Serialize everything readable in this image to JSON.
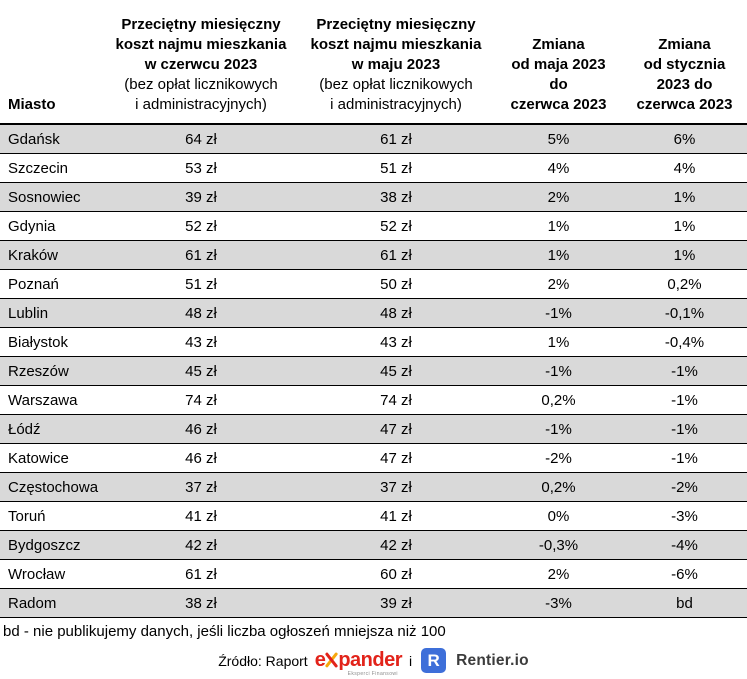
{
  "chart_data": {
    "type": "table",
    "columns": [
      {
        "id": "city",
        "header_bold": "Miasto",
        "header_normal": ""
      },
      {
        "id": "june",
        "header_bold": "Przeciętny miesięczny\nkoszt najmu mieszkania\nw czerwcu 2023",
        "header_normal": "(bez opłat licznikowych\ni administracyjnych)"
      },
      {
        "id": "may",
        "header_bold": "Przeciętny miesięczny\nkoszt najmu mieszkania\nw maju 2023",
        "header_normal": "(bez opłat licznikowych\ni administracyjnych)"
      },
      {
        "id": "change_may_june",
        "header_bold": "Zmiana\nod maja 2023\ndo\nczerwca 2023",
        "header_normal": ""
      },
      {
        "id": "change_jan_june",
        "header_bold": "Zmiana\nod stycznia\n2023 do\nczerwca 2023",
        "header_normal": ""
      }
    ],
    "rows": [
      {
        "city": "Gdańsk",
        "june": "64 zł",
        "may": "61 zł",
        "change_may_june": "5%",
        "change_jan_june": "6%"
      },
      {
        "city": "Szczecin",
        "june": "53 zł",
        "may": "51 zł",
        "change_may_june": "4%",
        "change_jan_june": "4%"
      },
      {
        "city": "Sosnowiec",
        "june": "39 zł",
        "may": "38 zł",
        "change_may_june": "2%",
        "change_jan_june": "1%"
      },
      {
        "city": "Gdynia",
        "june": "52 zł",
        "may": "52 zł",
        "change_may_june": "1%",
        "change_jan_june": "1%"
      },
      {
        "city": "Kraków",
        "june": "61 zł",
        "may": "61 zł",
        "change_may_june": "1%",
        "change_jan_june": "1%"
      },
      {
        "city": "Poznań",
        "june": "51 zł",
        "may": "50 zł",
        "change_may_june": "2%",
        "change_jan_june": "0,2%"
      },
      {
        "city": "Lublin",
        "june": "48 zł",
        "may": "48 zł",
        "change_may_june": "-1%",
        "change_jan_june": "-0,1%"
      },
      {
        "city": "Białystok",
        "june": "43 zł",
        "may": "43 zł",
        "change_may_june": "1%",
        "change_jan_june": "-0,4%"
      },
      {
        "city": "Rzeszów",
        "june": "45 zł",
        "may": "45 zł",
        "change_may_june": "-1%",
        "change_jan_june": "-1%"
      },
      {
        "city": "Warszawa",
        "june": "74 zł",
        "may": "74 zł",
        "change_may_june": "0,2%",
        "change_jan_june": "-1%"
      },
      {
        "city": "Łódź",
        "june": "46 zł",
        "may": "47 zł",
        "change_may_june": "-1%",
        "change_jan_june": "-1%"
      },
      {
        "city": "Katowice",
        "june": "46 zł",
        "may": "47 zł",
        "change_may_june": "-2%",
        "change_jan_june": "-1%"
      },
      {
        "city": "Częstochowa",
        "june": "37 zł",
        "may": "37 zł",
        "change_may_june": "0,2%",
        "change_jan_june": "-2%"
      },
      {
        "city": "Toruń",
        "june": "41 zł",
        "may": "41 zł",
        "change_may_june": "0%",
        "change_jan_june": "-3%"
      },
      {
        "city": "Bydgoszcz",
        "june": "42 zł",
        "may": "42 zł",
        "change_may_june": "-0,3%",
        "change_jan_june": "-4%"
      },
      {
        "city": "Wrocław",
        "june": "61 zł",
        "may": "60 zł",
        "change_may_june": "2%",
        "change_jan_june": "-6%"
      },
      {
        "city": "Radom",
        "june": "38 zł",
        "may": "39 zł",
        "change_may_june": "-3%",
        "change_jan_june": "bd"
      }
    ]
  },
  "footnote": "bd - nie publikujemy danych, jeśli liczba ogłoszeń mniejsza niż 100",
  "source": {
    "label": "Źródło: Raport",
    "conjunction": "i",
    "expander_logo": {
      "part1": "e",
      "part2": "pander",
      "subtext": "Eksperci Finansowi"
    },
    "rentier_logo": {
      "badge": "R",
      "name": "Rentier.io"
    }
  },
  "colors": {
    "row_alt": "#d9d9d9",
    "border": "#000000",
    "expander_red": "#e2231a",
    "expander_yellow": "#f7a80d",
    "rentier_blue": "#3e6fd9",
    "rentier_text": "#3c3c3c"
  }
}
